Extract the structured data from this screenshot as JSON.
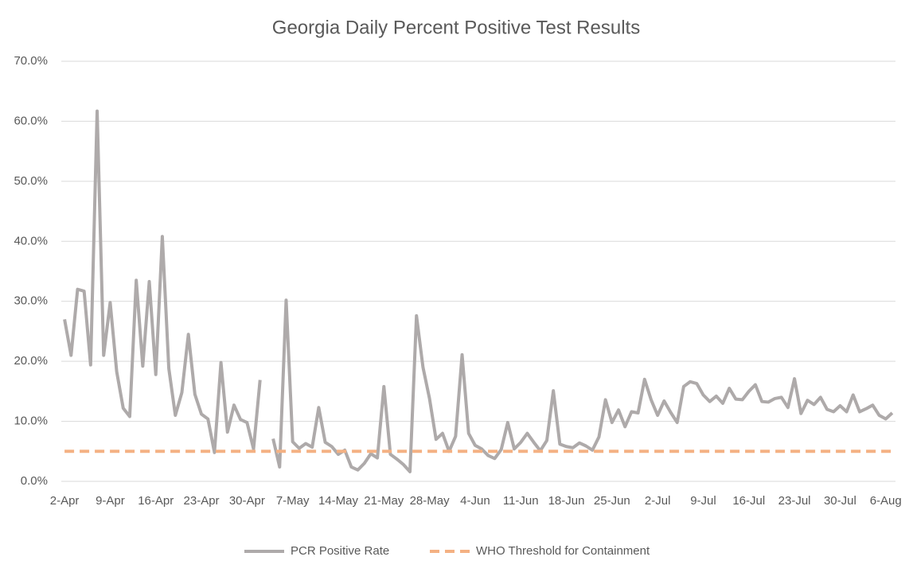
{
  "chart_data": {
    "type": "line",
    "title": "Georgia Daily Percent Positive Test Results",
    "categories": [
      "2-Apr",
      null,
      null,
      null,
      null,
      null,
      null,
      "9-Apr",
      null,
      null,
      null,
      null,
      null,
      null,
      "16-Apr",
      null,
      null,
      null,
      null,
      null,
      null,
      "23-Apr",
      null,
      null,
      null,
      null,
      null,
      null,
      "30-Apr",
      null,
      null,
      null,
      null,
      null,
      null,
      "7-May",
      null,
      null,
      null,
      null,
      null,
      null,
      "14-May",
      null,
      null,
      null,
      null,
      null,
      null,
      "21-May",
      null,
      null,
      null,
      null,
      null,
      null,
      "28-May",
      null,
      null,
      null,
      null,
      null,
      null,
      "4-Jun",
      null,
      null,
      null,
      null,
      null,
      null,
      "11-Jun",
      null,
      null,
      null,
      null,
      null,
      null,
      "18-Jun",
      null,
      null,
      null,
      null,
      null,
      null,
      "25-Jun",
      null,
      null,
      null,
      null,
      null,
      null,
      "2-Jul",
      null,
      null,
      null,
      null,
      null,
      null,
      "9-Jul",
      null,
      null,
      null,
      null,
      null,
      null,
      "16-Jul",
      null,
      null,
      null,
      null,
      null,
      null,
      "23-Jul",
      null,
      null,
      null,
      null,
      null,
      null,
      "30-Jul",
      null,
      null,
      null,
      null,
      null,
      null,
      "6-Aug",
      null
    ],
    "series": [
      {
        "name": "PCR Positive Rate",
        "color": "#aeaaaa",
        "dashed": false,
        "values": [
          27.0,
          21.0,
          32.0,
          31.7,
          19.4,
          61.7,
          21.0,
          29.8,
          18.3,
          12.2,
          10.8,
          33.5,
          19.2,
          33.3,
          17.8,
          40.8,
          18.8,
          11.0,
          14.8,
          24.5,
          14.5,
          11.2,
          10.4,
          4.8,
          19.8,
          8.2,
          12.7,
          10.3,
          9.8,
          5.4,
          16.9,
          null,
          7.1,
          2.4,
          30.2,
          6.6,
          5.5,
          6.3,
          5.7,
          12.3,
          6.5,
          5.8,
          4.5,
          5.2,
          2.4,
          1.9,
          3.0,
          4.6,
          3.9,
          15.8,
          4.5,
          3.7,
          2.8,
          1.6,
          27.6,
          19.0,
          13.8,
          7.0,
          8.0,
          5.0,
          7.5,
          21.1,
          8.0,
          6.0,
          5.4,
          4.3,
          3.8,
          5.3,
          9.8,
          5.4,
          6.5,
          8.0,
          6.5,
          5.1,
          6.8,
          15.1,
          6.2,
          5.8,
          5.6,
          6.4,
          5.9,
          5.2,
          7.4,
          13.6,
          9.8,
          11.9,
          9.1,
          11.6,
          11.4,
          17.0,
          13.6,
          11.0,
          13.4,
          11.5,
          9.8,
          15.8,
          16.6,
          16.3,
          14.4,
          13.3,
          14.2,
          13.0,
          15.5,
          13.7,
          13.6,
          15.0,
          16.1,
          13.3,
          13.2,
          13.8,
          14.0,
          12.3,
          17.1,
          11.3,
          13.5,
          12.8,
          14.0,
          12.0,
          11.6,
          12.6,
          11.6,
          14.4,
          11.6,
          12.1,
          12.7,
          11.0,
          10.4,
          11.4
        ]
      },
      {
        "name": "WHO Threshold for Containment",
        "color": "#f4b183",
        "dashed": true,
        "values": [
          5,
          5,
          5,
          5,
          5,
          5,
          5,
          5,
          5,
          5,
          5,
          5,
          5,
          5,
          5,
          5,
          5,
          5,
          5,
          5,
          5,
          5,
          5,
          5,
          5,
          5,
          5,
          5,
          5,
          5,
          5,
          5,
          5,
          5,
          5,
          5,
          5,
          5,
          5,
          5,
          5,
          5,
          5,
          5,
          5,
          5,
          5,
          5,
          5,
          5,
          5,
          5,
          5,
          5,
          5,
          5,
          5,
          5,
          5,
          5,
          5,
          5,
          5,
          5,
          5,
          5,
          5,
          5,
          5,
          5,
          5,
          5,
          5,
          5,
          5,
          5,
          5,
          5,
          5,
          5,
          5,
          5,
          5,
          5,
          5,
          5,
          5,
          5,
          5,
          5,
          5,
          5,
          5,
          5,
          5,
          5,
          5,
          5,
          5,
          5,
          5,
          5,
          5,
          5,
          5,
          5,
          5,
          5,
          5,
          5,
          5,
          5,
          5,
          5,
          5,
          5,
          5,
          5,
          5,
          5,
          5,
          5,
          5,
          5,
          5,
          5,
          5,
          5
        ]
      }
    ],
    "ylim": [
      0,
      70
    ],
    "yticks": [
      {
        "value": 0,
        "label": "0.0%"
      },
      {
        "value": 10,
        "label": "10.0%"
      },
      {
        "value": 20,
        "label": "20.0%"
      },
      {
        "value": 30,
        "label": "30.0%"
      },
      {
        "value": 40,
        "label": "40.0%"
      },
      {
        "value": 50,
        "label": "50.0%"
      },
      {
        "value": 60,
        "label": "60.0%"
      },
      {
        "value": 70,
        "label": "70.0%"
      }
    ],
    "grid": true,
    "legend": "bottom"
  }
}
